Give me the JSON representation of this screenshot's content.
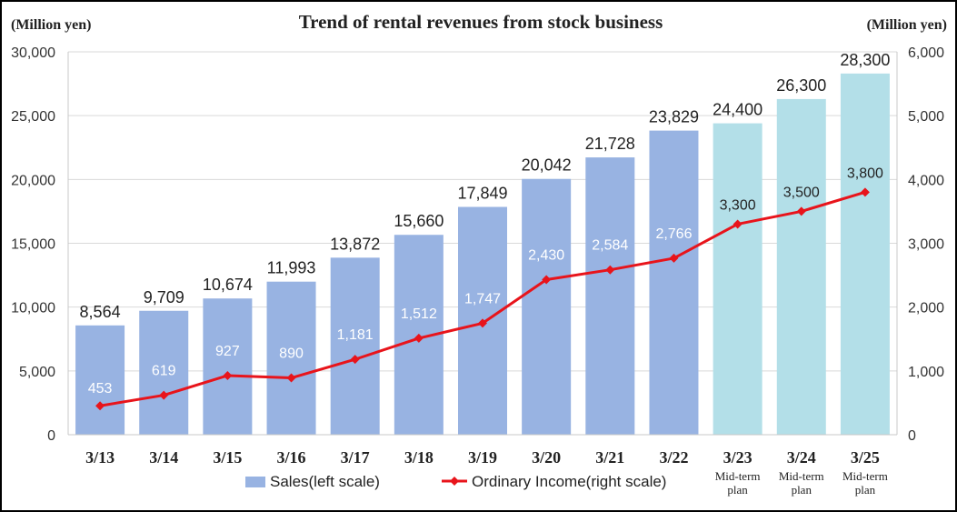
{
  "chart_data": {
    "type": "bar",
    "title": "Trend of rental revenues from stock business",
    "y_left_unit": "(Million yen)",
    "y_right_unit": "(Million yen)",
    "ylim_left": [
      0,
      30000
    ],
    "ylim_right": [
      0,
      6000
    ],
    "yticks_left": [
      "0",
      "5,000",
      "10,000",
      "15,000",
      "20,000",
      "25,000",
      "30,000"
    ],
    "yticks_right": [
      "0",
      "1,000",
      "2,000",
      "3,000",
      "4,000",
      "5,000",
      "6,000"
    ],
    "grid": true,
    "categories": [
      "3/13",
      "3/14",
      "3/15",
      "3/16",
      "3/17",
      "3/18",
      "3/19",
      "3/20",
      "3/21",
      "3/22",
      "3/23",
      "3/24",
      "3/25"
    ],
    "category_notes": [
      "",
      "",
      "",
      "",
      "",
      "",
      "",
      "",
      "",
      "",
      "Mid-term plan",
      "Mid-term plan",
      "Mid-term plan"
    ],
    "series": [
      {
        "name": "Sales(left scale)",
        "kind": "bar",
        "axis": "left",
        "values": [
          8564,
          9709,
          10674,
          11993,
          13872,
          15660,
          17849,
          20042,
          21728,
          23829,
          24400,
          26300,
          28300
        ],
        "labels": [
          "8,564",
          "9,709",
          "10,674",
          "11,993",
          "13,872",
          "15,660",
          "17,849",
          "20,042",
          "21,728",
          "23,829",
          "24,400",
          "26,300",
          "28,300"
        ],
        "color": "#98B3E2",
        "plan_color": "#B3DFE8"
      },
      {
        "name": "Ordinary Income(right scale)",
        "kind": "line",
        "axis": "right",
        "values": [
          453,
          619,
          927,
          890,
          1181,
          1512,
          1747,
          2430,
          2584,
          2766,
          3300,
          3500,
          3800
        ],
        "labels": [
          "453",
          "619",
          "927",
          "890",
          "1,181",
          "1,512",
          "1,747",
          "2,430",
          "2,584",
          "2,766",
          "3,300",
          "3,500",
          "3,800"
        ],
        "color": "#E8141B"
      }
    ],
    "plan_start_index": 10,
    "legend": "bottom"
  }
}
